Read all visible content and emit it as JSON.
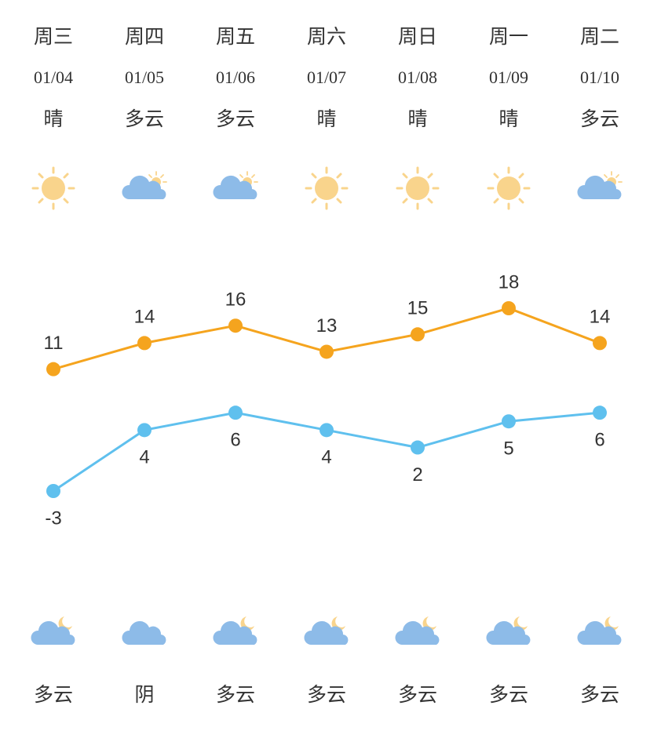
{
  "days": [
    {
      "weekday": "周三",
      "date": "01/04",
      "day_weather": "晴",
      "night_weather": "多云"
    },
    {
      "weekday": "周四",
      "date": "01/05",
      "day_weather": "多云",
      "night_weather": "阴"
    },
    {
      "weekday": "周五",
      "date": "01/06",
      "day_weather": "多云",
      "night_weather": "多云"
    },
    {
      "weekday": "周六",
      "date": "01/07",
      "day_weather": "晴",
      "night_weather": "多云"
    },
    {
      "weekday": "周日",
      "date": "01/08",
      "day_weather": "晴",
      "night_weather": "多云"
    },
    {
      "weekday": "周一",
      "date": "01/09",
      "day_weather": "晴",
      "night_weather": "多云"
    },
    {
      "weekday": "周二",
      "date": "01/10",
      "day_weather": "多云",
      "night_weather": "多云"
    }
  ],
  "chart_data": {
    "type": "line",
    "series": [
      {
        "color": "#f5a41e",
        "values": [
          11,
          14,
          16,
          13,
          15,
          18,
          14
        ]
      },
      {
        "color": "#5fc0ee",
        "values": [
          -3,
          4,
          6,
          4,
          2,
          5,
          6
        ]
      }
    ]
  }
}
